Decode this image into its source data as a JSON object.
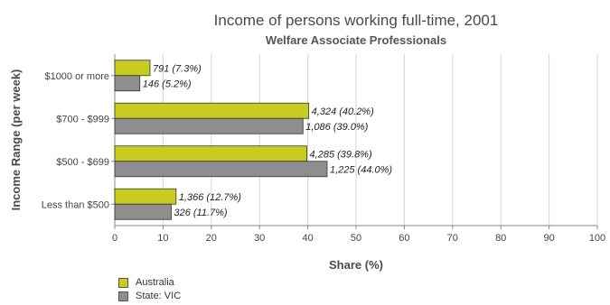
{
  "chart_data": {
    "type": "bar",
    "orientation": "horizontal",
    "title": "Income of persons working full-time, 2001",
    "subtitle": "Welfare Associate Professionals",
    "xlabel": "Share (%)",
    "ylabel": "Income Range (per week)",
    "xlim": [
      0,
      100
    ],
    "xticks": [
      0,
      10,
      20,
      30,
      40,
      50,
      60,
      70,
      80,
      90,
      100
    ],
    "grid": true,
    "legend_position": "bottom-left",
    "categories": [
      "$1000 or more",
      "$700 - $999",
      "$500 - $699",
      "Less than $500"
    ],
    "series": [
      {
        "name": "Australia",
        "color": "#c8cc1e",
        "values": [
          7.3,
          40.2,
          39.8,
          12.7
        ],
        "labels": [
          "791 (7.3%)",
          "4,324 (40.2%)",
          "4,285 (39.8%)",
          "1,366 (12.7%)"
        ]
      },
      {
        "name": "State: VIC",
        "color": "#8e8e8e",
        "values": [
          5.2,
          39.0,
          44.0,
          11.7
        ],
        "labels": [
          "146 (5.2%)",
          "1,086 (39.0%)",
          "1,225 (44.0%)",
          "326 (11.7%)"
        ]
      }
    ]
  }
}
